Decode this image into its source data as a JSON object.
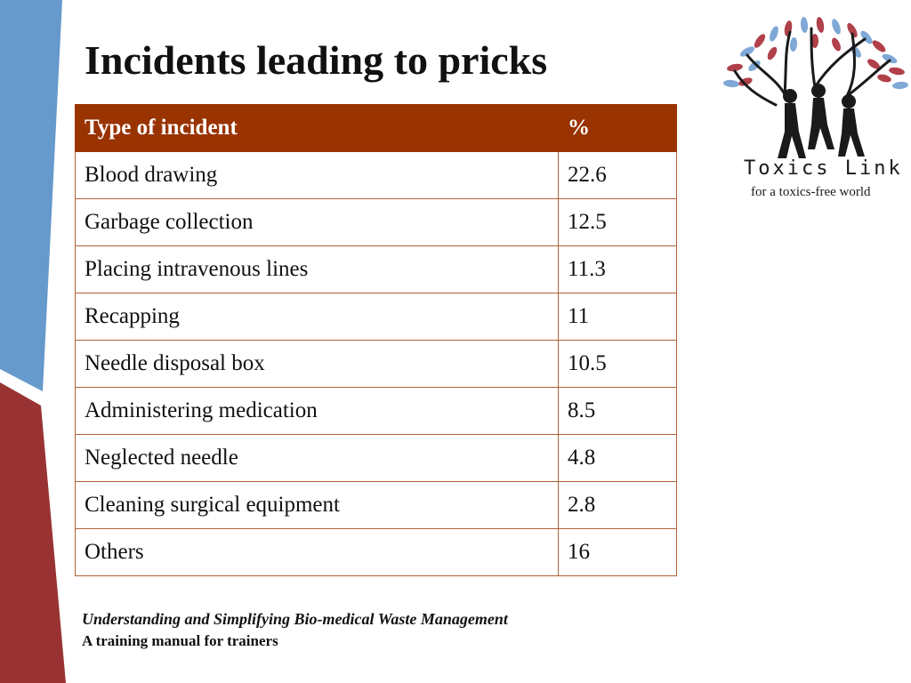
{
  "slide": {
    "title": "Incidents leading to pricks"
  },
  "table": {
    "headers": [
      "Type of incident",
      "%"
    ],
    "rows": [
      [
        "Blood drawing",
        "22.6"
      ],
      [
        "Garbage collection",
        "12.5"
      ],
      [
        "Placing intravenous lines",
        "11.3"
      ],
      [
        "Recapping",
        "11"
      ],
      [
        "Needle disposal box",
        "10.5"
      ],
      [
        "Administering medication",
        "8.5"
      ],
      [
        "Neglected needle",
        "4.8"
      ],
      [
        "Cleaning surgical equipment",
        "2.8"
      ],
      [
        "Others",
        "16"
      ]
    ]
  },
  "logo": {
    "name": "Toxics Link",
    "tagline": "for a toxics-free world"
  },
  "footer": {
    "title": "Understanding and Simplifying Bio-medical Waste Management",
    "subtitle": "A training manual for trainers"
  },
  "colors": {
    "header_bg": "#993300",
    "side_blue": "#6699cc",
    "side_red": "#993333",
    "leaf_blue": "#7fa8d6",
    "leaf_red": "#b0404a"
  }
}
